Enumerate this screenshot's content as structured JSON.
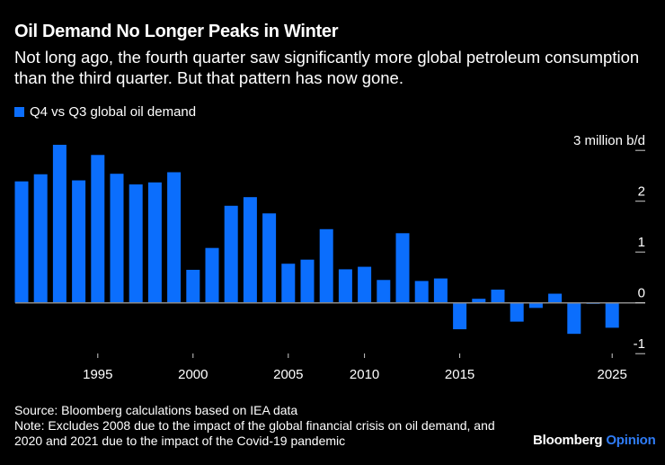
{
  "title": "Oil Demand No Longer Peaks in Winter",
  "subtitle": "Not long ago, the fourth quarter saw significantly more global petroleum consumption than the third quarter. But that pattern has now gone.",
  "footer": {
    "source": "Source: Bloomberg calculations based on IEA data",
    "note": "Note: Excludes 2008 due to the impact of the global financial crisis on oil demand, and 2020 and 2021 due to the impact of the Covid-19 pandemic"
  },
  "logo": {
    "brand": "Bloomberg",
    "product": "Opinion"
  },
  "colors": {
    "bar": "#0b6efd",
    "background": "#000000",
    "zero_line": "#8a8a8a"
  },
  "chart_data": {
    "type": "bar",
    "legend": [
      "Q4 vs Q3 global oil demand"
    ],
    "legend_placement": "top-left",
    "unit_label": "3 million b/d",
    "categories": [
      1991,
      1992,
      1993,
      1994,
      1995,
      1996,
      1997,
      1998,
      1999,
      2000,
      2001,
      2002,
      2003,
      2004,
      2005,
      2006,
      2007,
      2009,
      2010,
      2011,
      2012,
      2013,
      2014,
      2015,
      2016,
      2017,
      2018,
      2019,
      2022,
      2023,
      2024,
      2025
    ],
    "values": [
      2.39,
      2.53,
      3.11,
      2.41,
      2.91,
      2.54,
      2.33,
      2.37,
      2.57,
      0.65,
      1.08,
      1.91,
      2.08,
      1.76,
      0.77,
      0.85,
      1.45,
      0.66,
      0.71,
      0.45,
      1.37,
      0.43,
      0.48,
      -0.52,
      0.08,
      0.26,
      -0.37,
      -0.1,
      0.18,
      -0.61,
      -0.02,
      -0.49
    ],
    "x_ticks": [
      "1995",
      "2000",
      "2005",
      "2010",
      "2015",
      "2025"
    ],
    "y_ticks": [
      3,
      2,
      1,
      0,
      -1
    ],
    "y_tick_labels": [
      "3 million b/d",
      "2",
      "1",
      "0",
      "-1"
    ],
    "ylim": [
      -1.1,
      3.2
    ],
    "y_axis_side": "right",
    "grid": false
  }
}
